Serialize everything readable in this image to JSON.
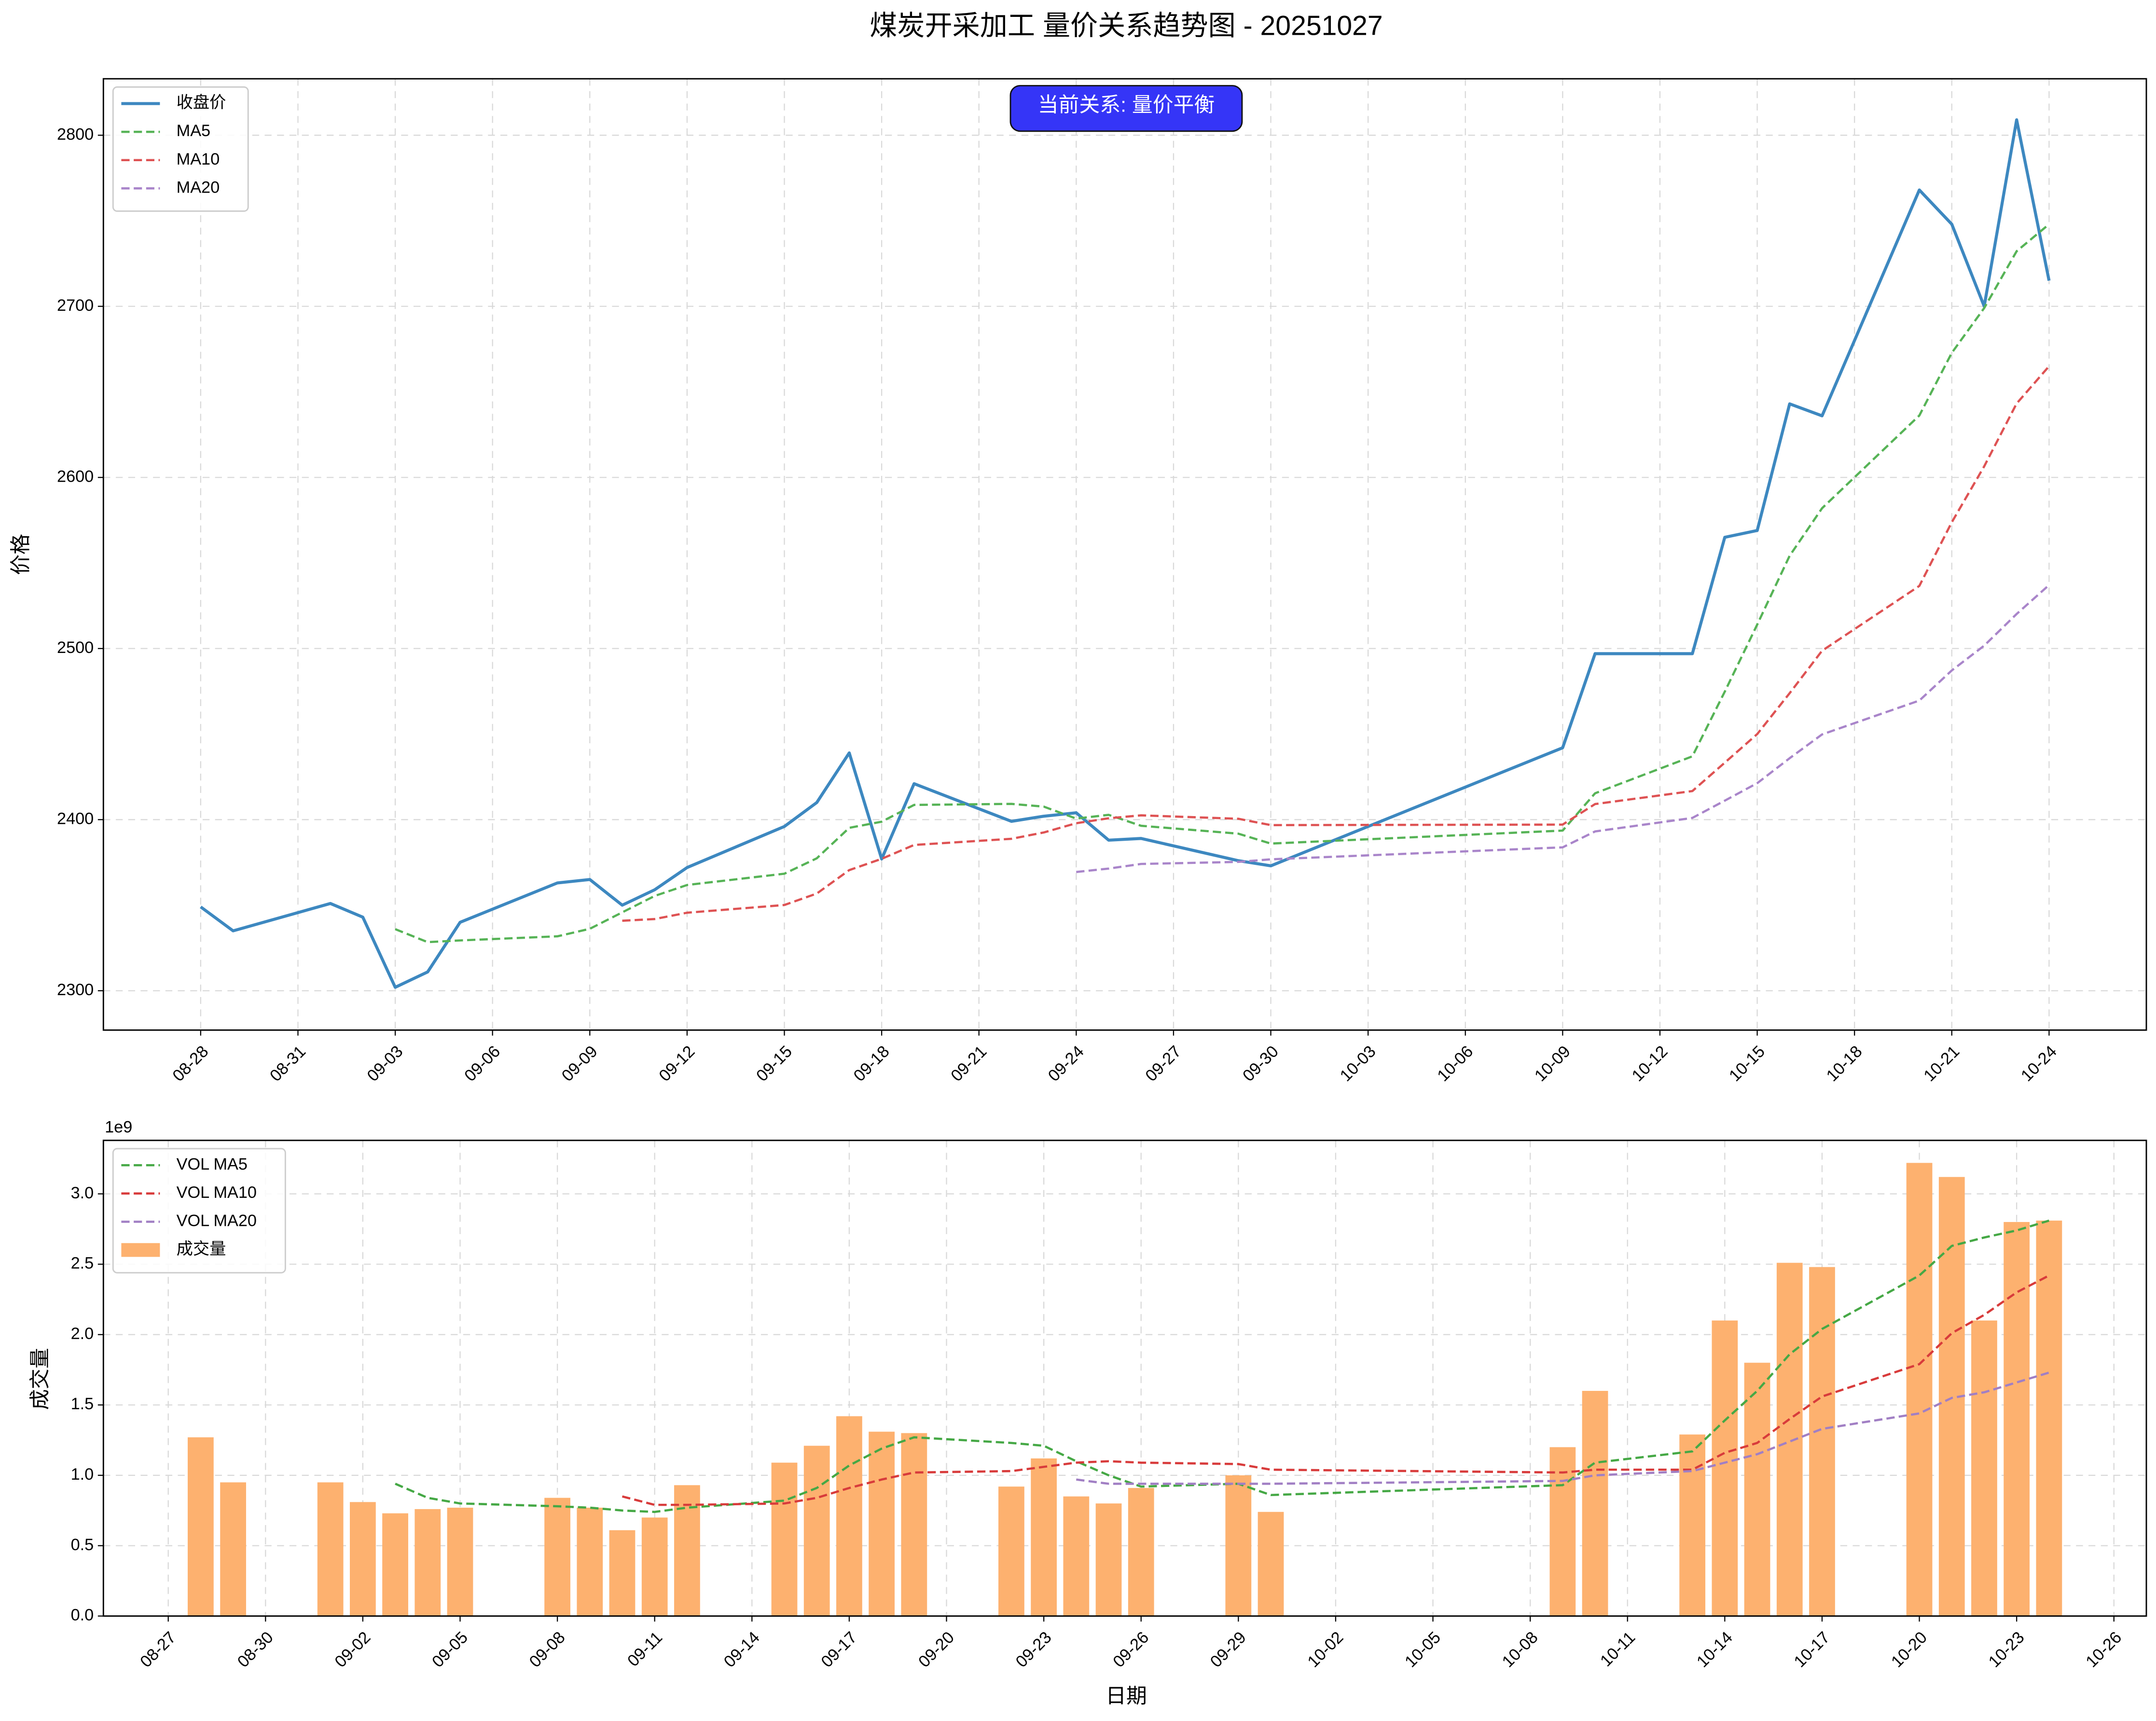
{
  "chart_data": [
    {
      "type": "line",
      "title": "煤炭开采加工 量价关系趋势图 - 20251027",
      "annotation": "当前关系: 量价平衡",
      "ylabel": "价格",
      "legend": "upper left",
      "grid": true,
      "x": [
        "08-28",
        "08-29",
        "09-01",
        "09-02",
        "09-03",
        "09-04",
        "09-05",
        "09-08",
        "09-09",
        "09-10",
        "09-11",
        "09-12",
        "09-15",
        "09-16",
        "09-17",
        "09-18",
        "09-19",
        "09-22",
        "09-23",
        "09-24",
        "09-25",
        "09-26",
        "09-29",
        "09-30",
        "10-09",
        "10-10",
        "10-13",
        "10-14",
        "10-15",
        "10-16",
        "10-17",
        "10-20",
        "10-21",
        "10-22",
        "10-23",
        "10-24"
      ],
      "xlim": [
        "08-25",
        "10-27"
      ],
      "xticks": [
        "08-28",
        "08-31",
        "09-03",
        "09-06",
        "09-09",
        "09-12",
        "09-15",
        "09-18",
        "09-21",
        "09-24",
        "09-27",
        "09-30",
        "10-03",
        "10-06",
        "10-09",
        "10-12",
        "10-15",
        "10-18",
        "10-21",
        "10-24"
      ],
      "ylim": [
        2277,
        2833
      ],
      "yticks": [
        2300,
        2400,
        2500,
        2600,
        2700,
        2800
      ],
      "series": [
        {
          "name": "收盘价",
          "type": "line",
          "style": "solid",
          "color": "#3d88c0",
          "values": [
            2349,
            2335,
            2351,
            2343,
            2302,
            2311,
            2340,
            2363,
            2365,
            2350,
            2359,
            2372,
            2396,
            2410,
            2439,
            2377,
            2421,
            2399,
            2402,
            2404,
            2388,
            2389,
            2376,
            2373,
            2442,
            2497,
            2497,
            2565,
            2569,
            2643,
            2636,
            2768,
            2748,
            2700,
            2809,
            2715
          ]
        },
        {
          "name": "MA5",
          "type": "line",
          "style": "dashed",
          "color": "#56b356",
          "values": [
            null,
            null,
            null,
            null,
            2336,
            2328.4,
            2329.4,
            2331.8,
            2336.2,
            2345.8,
            2355.4,
            2361.8,
            2368.4,
            2377.4,
            2395.2,
            2398.8,
            2408.6,
            2409.2,
            2407.6,
            2400.6,
            2402.8,
            2396.4,
            2391.8,
            2386,
            2393.6,
            2415.4,
            2437,
            2474.8,
            2514,
            2554.2,
            2582,
            2636.2,
            2672.8,
            2699,
            2732.2,
            2748
          ]
        },
        {
          "name": "MA10",
          "type": "line",
          "style": "dashed",
          "color": "#de5253",
          "values": [
            null,
            null,
            null,
            null,
            null,
            null,
            null,
            null,
            null,
            2340.9,
            2341.9,
            2345.6,
            2350.1,
            2356.8,
            2370.5,
            2377.1,
            2385.2,
            2388.8,
            2392.5,
            2397.9,
            2400.8,
            2402.5,
            2400.5,
            2396.8,
            2397.1,
            2409.1,
            2416.7,
            2433.3,
            2450,
            2473.9,
            2498.7,
            2536.6,
            2573.8,
            2606.5,
            2643.2,
            2665
          ]
        },
        {
          "name": "MA20",
          "type": "line",
          "style": "dashed",
          "color": "#a985ca",
          "values": [
            null,
            null,
            null,
            null,
            null,
            null,
            null,
            null,
            null,
            null,
            null,
            null,
            null,
            null,
            null,
            null,
            null,
            null,
            null,
            2369.4,
            2371.4,
            2374.1,
            2375.3,
            2376.8,
            2383.8,
            2393.1,
            2401,
            2411.1,
            2421.3,
            2435.9,
            2449.8,
            2469.6,
            2487.2,
            2501.7,
            2520.2,
            2537.1
          ]
        }
      ]
    },
    {
      "type": "bar",
      "xlabel": "日期",
      "ylabel": "成交量",
      "y_offset_label": "1e9",
      "legend": "upper left",
      "grid": true,
      "x": [
        "08-28",
        "08-29",
        "09-01",
        "09-02",
        "09-03",
        "09-04",
        "09-05",
        "09-08",
        "09-09",
        "09-10",
        "09-11",
        "09-12",
        "09-15",
        "09-16",
        "09-17",
        "09-18",
        "09-19",
        "09-22",
        "09-23",
        "09-24",
        "09-25",
        "09-26",
        "09-29",
        "09-30",
        "10-09",
        "10-10",
        "10-13",
        "10-14",
        "10-15",
        "10-16",
        "10-17",
        "10-20",
        "10-21",
        "10-22",
        "10-23",
        "10-24"
      ],
      "xlim": [
        "08-25",
        "10-27"
      ],
      "xticks": [
        "08-27",
        "08-30",
        "09-02",
        "09-05",
        "09-08",
        "09-11",
        "09-14",
        "09-17",
        "09-20",
        "09-23",
        "09-26",
        "09-29",
        "10-02",
        "10-05",
        "10-08",
        "10-11",
        "10-14",
        "10-17",
        "10-20",
        "10-23",
        "10-26"
      ],
      "ylim": [
        0,
        3.38
      ],
      "yticks": [
        {
          "value": 0,
          "label": "0.0"
        },
        0.5,
        {
          "value": 1,
          "label": "1.0"
        },
        1.5,
        {
          "value": 2,
          "label": "2.0"
        },
        2.5,
        {
          "value": 3,
          "label": "3.0"
        }
      ],
      "series": [
        {
          "name": "VOL MA5",
          "type": "line",
          "style": "dashed",
          "color": "#45a845",
          "values": [
            null,
            null,
            null,
            null,
            0.94,
            0.84,
            0.8,
            0.78,
            0.77,
            0.75,
            0.74,
            0.77,
            0.82,
            0.91,
            1.07,
            1.19,
            1.27,
            1.23,
            1.21,
            1.1,
            1,
            0.92,
            0.94,
            0.86,
            0.93,
            1.09,
            1.17,
            1.39,
            1.6,
            1.86,
            2.04,
            2.42,
            2.63,
            2.69,
            2.74,
            2.81
          ]
        },
        {
          "name": "VOL MA10",
          "type": "line",
          "style": "dashed",
          "color": "#d83b3b",
          "values": [
            null,
            null,
            null,
            null,
            null,
            null,
            null,
            null,
            null,
            0.85,
            0.79,
            0.79,
            0.8,
            0.84,
            0.91,
            0.97,
            1.02,
            1.03,
            1.06,
            1.09,
            1.1,
            1.09,
            1.08,
            1.04,
            1.02,
            1.04,
            1.04,
            1.16,
            1.23,
            1.4,
            1.56,
            1.79,
            2.01,
            2.14,
            2.3,
            2.42
          ]
        },
        {
          "name": "VOL MA20",
          "type": "line",
          "style": "dashed",
          "color": "#a17fc4",
          "values": [
            null,
            null,
            null,
            null,
            null,
            null,
            null,
            null,
            null,
            null,
            null,
            null,
            null,
            null,
            null,
            null,
            null,
            null,
            null,
            0.97,
            0.94,
            0.94,
            0.94,
            0.94,
            0.96,
            1,
            1.03,
            1.09,
            1.15,
            1.24,
            1.33,
            1.44,
            1.55,
            1.59,
            1.66,
            1.73
          ]
        },
        {
          "name": "成交量",
          "type": "bar",
          "color": "#fdb16f",
          "values": [
            1.27,
            0.95,
            0.95,
            0.81,
            0.73,
            0.76,
            0.77,
            0.84,
            0.77,
            0.61,
            0.7,
            0.93,
            1.09,
            1.21,
            1.42,
            1.31,
            1.3,
            0.92,
            1.12,
            0.85,
            0.8,
            0.91,
            1,
            0.74,
            1.2,
            1.6,
            1.29,
            2.1,
            1.8,
            2.51,
            2.48,
            3.22,
            3.12,
            2.1,
            2.8,
            2.81
          ]
        }
      ]
    }
  ]
}
